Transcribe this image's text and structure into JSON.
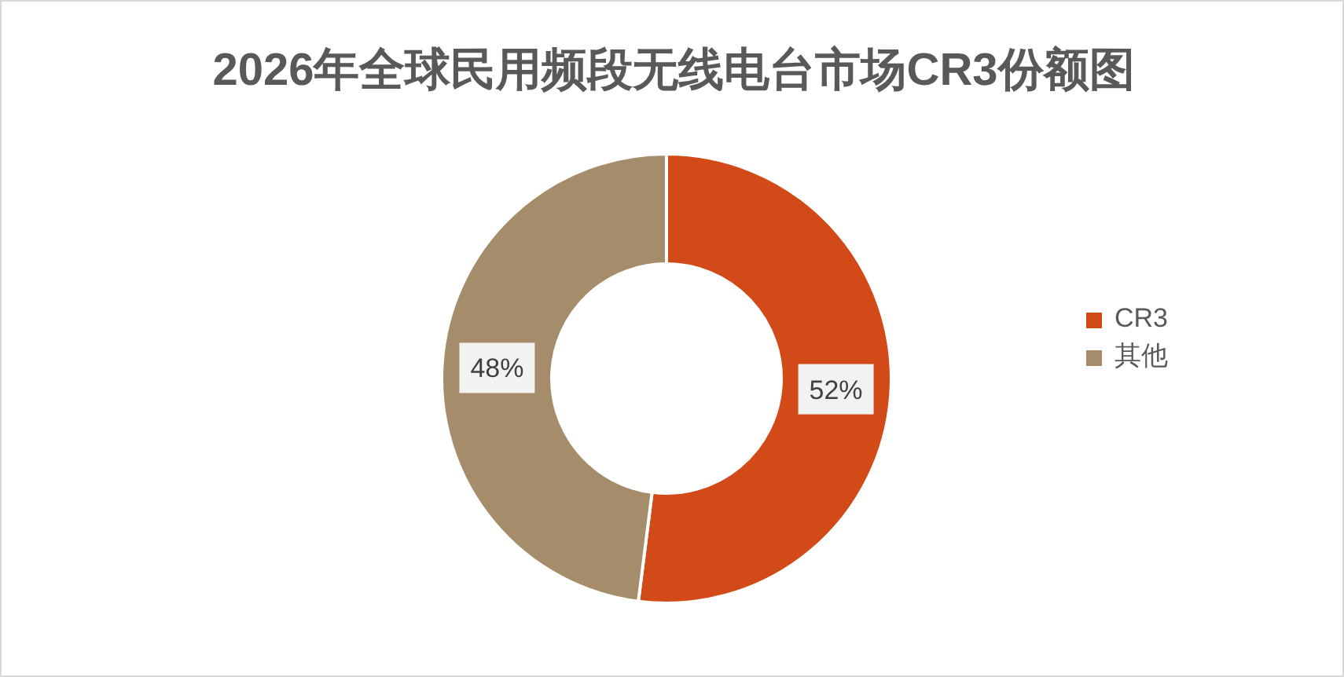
{
  "chart_data": {
    "type": "donut",
    "title": "2026年全球民用频段无线电台市场CR3份额图",
    "categories": [
      "CR3",
      "其他"
    ],
    "values": [
      52,
      48
    ],
    "colors": [
      "#d24a18",
      "#a58d6b"
    ],
    "value_labels": [
      "52%",
      "48%"
    ],
    "legend": "right"
  }
}
